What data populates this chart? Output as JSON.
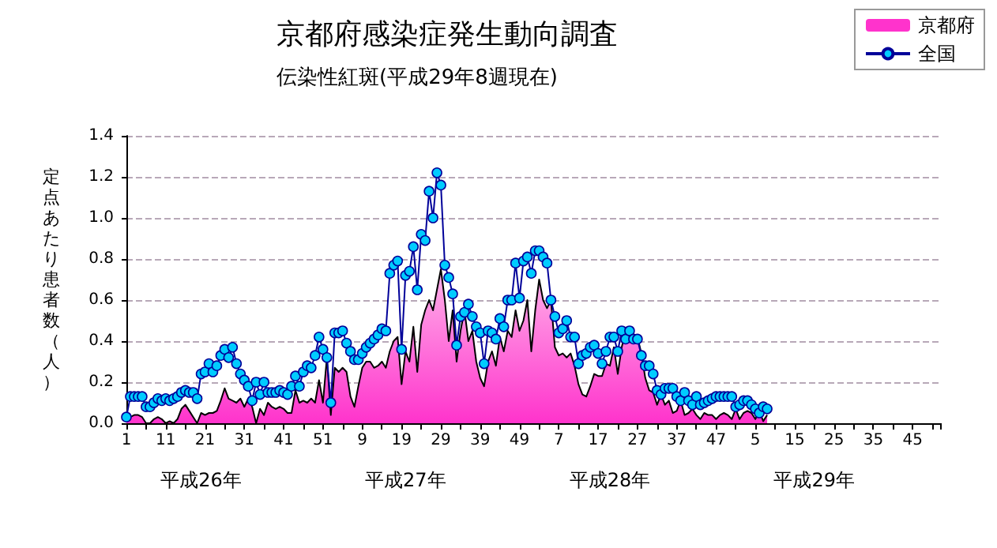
{
  "chart_data": {
    "type": "area",
    "title": "京都府感染症発生動向調査",
    "subtitle": "伝染性紅斑(平成29年8週現在)",
    "ylabel": "定点あたり患者数（人）",
    "categories": [
      "1",
      null,
      null,
      null,
      null,
      null,
      null,
      null,
      null,
      null,
      "11",
      null,
      null,
      null,
      null,
      null,
      null,
      null,
      null,
      null,
      "21",
      null,
      null,
      null,
      null,
      null,
      null,
      null,
      null,
      null,
      "31",
      null,
      null,
      null,
      null,
      null,
      null,
      null,
      null,
      null,
      "41",
      null,
      null,
      null,
      null,
      null,
      null,
      null,
      null,
      null,
      "51",
      null,
      null,
      null,
      null,
      null,
      null,
      null,
      null,
      null,
      "9",
      null,
      null,
      null,
      null,
      null,
      null,
      null,
      null,
      null,
      "19",
      null,
      null,
      null,
      null,
      null,
      null,
      null,
      null,
      null,
      "29",
      null,
      null,
      null,
      null,
      null,
      null,
      null,
      null,
      null,
      "39",
      null,
      null,
      null,
      null,
      null,
      null,
      null,
      null,
      null,
      "49",
      null,
      null,
      null,
      null,
      null,
      null,
      null,
      null,
      null,
      "7",
      null,
      null,
      null,
      null,
      null,
      null,
      null,
      null,
      null,
      "17",
      null,
      null,
      null,
      null,
      null,
      null,
      null,
      null,
      null,
      "27",
      null,
      null,
      null,
      null,
      null,
      null,
      null,
      null,
      null,
      "37",
      null,
      null,
      null,
      null,
      null,
      null,
      null,
      null,
      null,
      "47",
      null,
      null,
      null,
      null,
      null,
      null,
      null,
      null,
      null,
      "5",
      null,
      null,
      null,
      null,
      null,
      null,
      null,
      null,
      null,
      "15",
      null,
      null,
      null,
      null,
      null,
      null,
      null,
      null,
      null,
      "25",
      null,
      null,
      null,
      null,
      null,
      null,
      null,
      null,
      null,
      "35",
      null,
      null,
      null,
      null,
      null,
      null,
      null,
      null,
      null,
      "45",
      null,
      null,
      null,
      null,
      null,
      null,
      null
    ],
    "series": [
      {
        "name": "京都府",
        "color": "#ff33cc",
        "values": [
          0.01,
          0.03,
          0.04,
          0.04,
          0.03,
          0,
          0,
          0.02,
          0.03,
          0.02,
          0,
          0.01,
          0,
          0.02,
          0.07,
          0.09,
          0.06,
          0.03,
          0,
          0.05,
          0.04,
          0.05,
          0.05,
          0.06,
          0.11,
          0.17,
          0.12,
          0.11,
          0.1,
          0.12,
          0.08,
          0.12,
          0.08,
          0,
          0.07,
          0.04,
          0.1,
          0.08,
          0.07,
          0.08,
          0.07,
          0.05,
          0.05,
          0.16,
          0.1,
          0.11,
          0.1,
          0.12,
          0.1,
          0.21,
          0.1,
          0.32,
          0.04,
          0.27,
          0.25,
          0.27,
          0.25,
          0.13,
          0.08,
          0.18,
          0.27,
          0.3,
          0.3,
          0.27,
          0.28,
          0.3,
          0.27,
          0.35,
          0.4,
          0.42,
          0.19,
          0.35,
          0.3,
          0.47,
          0.25,
          0.48,
          0.55,
          0.6,
          0.55,
          0.65,
          0.75,
          0.6,
          0.4,
          0.55,
          0.3,
          0.45,
          0.55,
          0.4,
          0.45,
          0.3,
          0.22,
          0.18,
          0.3,
          0.35,
          0.28,
          0.42,
          0.35,
          0.45,
          0.42,
          0.55,
          0.45,
          0.5,
          0.6,
          0.35,
          0.55,
          0.7,
          0.6,
          0.56,
          0.6,
          0.37,
          0.33,
          0.34,
          0.32,
          0.34,
          0.28,
          0.19,
          0.14,
          0.13,
          0.18,
          0.24,
          0.23,
          0.23,
          0.29,
          0.28,
          0.37,
          0.24,
          0.37,
          0.45,
          0.46,
          0.43,
          0.42,
          0.34,
          0.22,
          0.16,
          0.15,
          0.09,
          0.14,
          0.09,
          0.11,
          0.05,
          0.06,
          0.11,
          0.04,
          0.05,
          0.07,
          0.04,
          0.02,
          0.05,
          0.04,
          0.04,
          0.02,
          0.04,
          0.05,
          0.04,
          0.02,
          0.07,
          0.02,
          0.05,
          0.06,
          0.05,
          0.02,
          0.06,
          0.01,
          0.04,
          null,
          null,
          null,
          null,
          null,
          null,
          null,
          null,
          null,
          null,
          null,
          null,
          null,
          null,
          null,
          null,
          null,
          null,
          null,
          null,
          null,
          null,
          null,
          null,
          null,
          null,
          null,
          null,
          null,
          null,
          null,
          null,
          null,
          null,
          null,
          null,
          null,
          null,
          null,
          null,
          null,
          null,
          null,
          null
        ]
      },
      {
        "name": "全国",
        "type": "line",
        "color": "#000099",
        "marker": "circle",
        "values": [
          0.03,
          0.13,
          0.13,
          0.13,
          0.13,
          0.08,
          0.08,
          0.1,
          0.12,
          0.11,
          0.12,
          0.11,
          0.12,
          0.13,
          0.15,
          0.16,
          0.15,
          0.15,
          0.12,
          0.24,
          0.25,
          0.29,
          0.25,
          0.28,
          0.33,
          0.36,
          0.32,
          0.37,
          0.29,
          0.24,
          0.21,
          0.18,
          0.11,
          0.2,
          0.14,
          0.2,
          0.15,
          0.15,
          0.15,
          0.16,
          0.15,
          0.14,
          0.18,
          0.23,
          0.18,
          0.25,
          0.28,
          0.27,
          0.33,
          0.42,
          0.36,
          0.32,
          0.1,
          0.44,
          0.44,
          0.45,
          0.39,
          0.35,
          0.31,
          0.31,
          0.34,
          0.37,
          0.39,
          0.41,
          0.43,
          0.46,
          0.45,
          0.73,
          0.77,
          0.79,
          0.36,
          0.72,
          0.74,
          0.86,
          0.65,
          0.92,
          0.89,
          1.13,
          1.0,
          1.22,
          1.16,
          0.77,
          0.71,
          0.63,
          0.38,
          0.52,
          0.54,
          0.58,
          0.52,
          0.47,
          0.44,
          0.29,
          0.45,
          0.44,
          0.41,
          0.51,
          0.47,
          0.6,
          0.6,
          0.78,
          0.61,
          0.79,
          0.81,
          0.73,
          0.84,
          0.84,
          0.81,
          0.78,
          0.6,
          0.52,
          0.44,
          0.46,
          0.5,
          0.42,
          0.42,
          0.29,
          0.33,
          0.34,
          0.37,
          0.38,
          0.34,
          0.29,
          0.35,
          0.42,
          0.42,
          0.35,
          0.45,
          0.41,
          0.45,
          0.41,
          0.41,
          0.33,
          0.28,
          0.28,
          0.24,
          0.16,
          0.14,
          0.17,
          0.17,
          0.17,
          0.13,
          0.11,
          0.15,
          0.11,
          0.09,
          0.13,
          0.09,
          0.1,
          0.11,
          0.12,
          0.13,
          0.13,
          0.13,
          0.13,
          0.13,
          0.08,
          0.09,
          0.11,
          0.11,
          0.09,
          0.07,
          0.05,
          0.08,
          0.07,
          null,
          null,
          null,
          null,
          null,
          null,
          null,
          null,
          null,
          null,
          null,
          null,
          null,
          null,
          null,
          null,
          null,
          null,
          null,
          null,
          null,
          null,
          null,
          null,
          null,
          null,
          null,
          null,
          null,
          null,
          null,
          null,
          null,
          null,
          null,
          null,
          null,
          null,
          null,
          null,
          null,
          null,
          null,
          null
        ]
      }
    ],
    "ylim": [
      0,
      1.4
    ],
    "yticks": [
      {
        "value": 0,
        "label": "0.0"
      },
      {
        "value": 0.2,
        "label": "0.2"
      },
      {
        "value": 0.4,
        "label": "0.4"
      },
      {
        "value": 0.6,
        "label": "0.6"
      },
      {
        "value": 0.8,
        "label": "0.8"
      },
      {
        "value": 1,
        "label": "1.0"
      },
      {
        "value": 1.2,
        "label": "1.2"
      },
      {
        "value": 1.4,
        "label": "1.4"
      }
    ],
    "grid": "y",
    "legend": "top right",
    "annotations": [
      "平成26年",
      "平成27年",
      "平成28年",
      "平成29年"
    ]
  }
}
